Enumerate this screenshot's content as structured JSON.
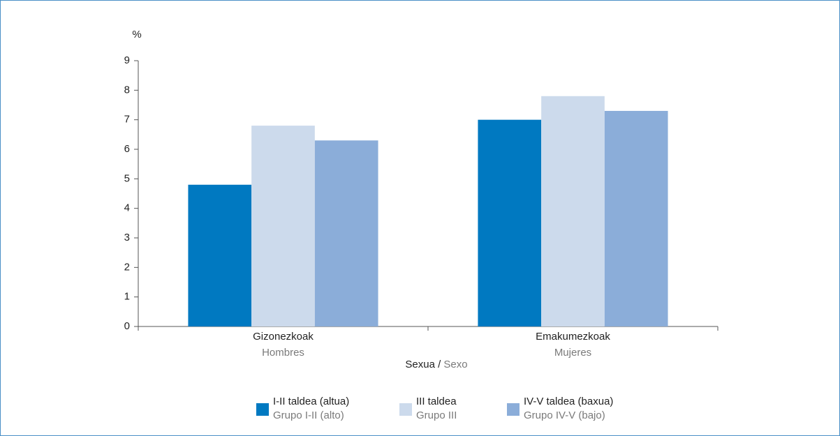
{
  "chart_data": {
    "type": "bar",
    "y_label": "%",
    "x_label": {
      "eu": "Sexua /",
      "es": "Sexo"
    },
    "categories": [
      "Gizonezkoak",
      "Emakumezkoak"
    ],
    "category_subtitles": [
      "Hombres",
      "Mujeres"
    ],
    "series": [
      {
        "name": "I-II taldea (altua)",
        "name_es": "Grupo I-II (alto)",
        "color": "#0079c1",
        "values": [
          4.8,
          7.0
        ]
      },
      {
        "name": "III taldea",
        "name_es": "Grupo III",
        "color": "#ccdaec",
        "values": [
          6.8,
          7.8
        ]
      },
      {
        "name": "IV-V taldea (baxua)",
        "name_es": "Grupo IV-V (bajo)",
        "color": "#8badd9",
        "values": [
          6.3,
          7.3
        ]
      }
    ],
    "ylim": [
      0,
      9
    ],
    "yticks": [
      0,
      1,
      2,
      3,
      4,
      5,
      6,
      7,
      8,
      9
    ],
    "grid": false
  }
}
